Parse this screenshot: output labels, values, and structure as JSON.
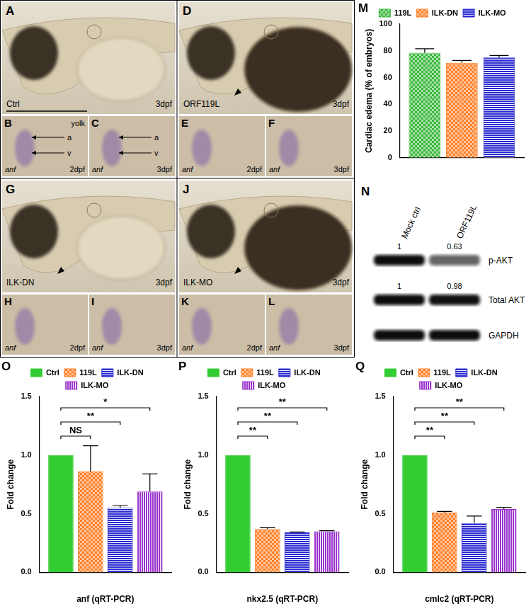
{
  "image_panels": [
    {
      "panel": "A",
      "label": "Ctrl",
      "stage": "3dpf"
    },
    {
      "panel": "B",
      "texts": [
        "yolk",
        "a",
        "v"
      ],
      "gene": "anf",
      "stage": "2dpf"
    },
    {
      "panel": "C",
      "texts": [
        "a",
        "v"
      ],
      "gene": "anf",
      "stage": "3dpf"
    },
    {
      "panel": "D",
      "label": "ORF119L",
      "stage": "3dpf"
    },
    {
      "panel": "E",
      "texts": [],
      "gene": "anf",
      "stage": "2dpf"
    },
    {
      "panel": "F",
      "texts": [],
      "gene": "anf",
      "stage": "3dpf"
    },
    {
      "panel": "G",
      "label": "ILK-DN",
      "stage": "3dpf"
    },
    {
      "panel": "H",
      "texts": [],
      "gene": "anf",
      "stage": "2dpf"
    },
    {
      "panel": "I",
      "texts": [],
      "gene": "anf",
      "stage": "3dpf"
    },
    {
      "panel": "J",
      "label": "ILK-MO",
      "stage": "3dpf"
    },
    {
      "panel": "K",
      "texts": [],
      "gene": "anf",
      "stage": "2dpf"
    },
    {
      "panel": "L",
      "texts": [],
      "gene": "anf",
      "stage": "3dpf"
    }
  ],
  "blot": {
    "panel": "N",
    "columns": [
      "Mock ctrl",
      "ORF119L"
    ],
    "rows": [
      {
        "name": "p-AKT",
        "values": [
          1,
          0.63
        ]
      },
      {
        "name": "Total AKT",
        "values": [
          1,
          0.98
        ]
      },
      {
        "name": "GAPDH"
      }
    ]
  },
  "chart_data": [
    {
      "panel": "M",
      "type": "bar",
      "y_label": "Cardiac edema (% of embryos)",
      "categories": [
        null
      ],
      "series": [
        {
          "name": "119L",
          "color": "#3cb83c",
          "values": [
            78.5
          ],
          "errors": [
            3
          ]
        },
        {
          "name": "ILK-DN",
          "color": "#ff7f27",
          "values": [
            71
          ],
          "errors": [
            1.8
          ]
        },
        {
          "name": "ILK-MO",
          "color": "#2a2ad0",
          "values": [
            75
          ],
          "errors": [
            1.5
          ]
        }
      ],
      "ylim": [
        0,
        100
      ],
      "yticks": [
        0,
        20,
        40,
        60,
        80,
        100
      ],
      "grid": false,
      "legend": "top"
    },
    {
      "panel": "O",
      "type": "bar",
      "x_label": "anf (qRT-PCR)",
      "y_label": "Fold change",
      "categories": [
        null
      ],
      "series": [
        {
          "name": "Ctrl",
          "color": "#33cc33",
          "values": [
            1.0
          ],
          "errors": [
            0
          ]
        },
        {
          "name": "119L",
          "color": "#ff7f27",
          "values": [
            0.86
          ],
          "errors": [
            0.22
          ]
        },
        {
          "name": "ILK-DN",
          "color": "#2a2ad0",
          "values": [
            0.55
          ],
          "errors": [
            0.02
          ]
        },
        {
          "name": "ILK-MO",
          "color": "#9933cc",
          "values": [
            0.69
          ],
          "errors": [
            0.15
          ]
        }
      ],
      "significance": [
        {
          "from": "Ctrl",
          "to": "119L",
          "label": "NS"
        },
        {
          "from": "Ctrl",
          "to": "ILK-DN",
          "label": "**"
        },
        {
          "from": "Ctrl",
          "to": "ILK-MO",
          "label": "*"
        }
      ],
      "ylim": [
        0,
        1.5
      ],
      "yticks": [
        {
          "value": 0,
          "label": "0.0"
        },
        0.5,
        {
          "value": 1,
          "label": "1.0"
        },
        1.5
      ],
      "grid": false,
      "legend": "top"
    },
    {
      "panel": "P",
      "type": "bar",
      "x_label": "nkx2.5 (qRT-PCR)",
      "y_label": "Fold change",
      "categories": [
        null
      ],
      "series": [
        {
          "name": "Ctrl",
          "color": "#33cc33",
          "values": [
            1.0
          ],
          "errors": [
            0
          ]
        },
        {
          "name": "119L",
          "color": "#ff7f27",
          "values": [
            0.37
          ],
          "errors": [
            0.01
          ]
        },
        {
          "name": "ILK-DN",
          "color": "#2a2ad0",
          "values": [
            0.34
          ],
          "errors": [
            0.005
          ]
        },
        {
          "name": "ILK-MO",
          "color": "#9933cc",
          "values": [
            0.35
          ],
          "errors": [
            0.005
          ]
        }
      ],
      "significance": [
        {
          "from": "Ctrl",
          "to": "119L",
          "label": "**"
        },
        {
          "from": "Ctrl",
          "to": "ILK-DN",
          "label": "**"
        },
        {
          "from": "Ctrl",
          "to": "ILK-MO",
          "label": "**"
        }
      ],
      "ylim": [
        0,
        1.5
      ],
      "yticks": [
        {
          "value": 0,
          "label": "0.0"
        },
        0.5,
        {
          "value": 1,
          "label": "1.0"
        },
        1.5
      ],
      "grid": false,
      "legend": "top"
    },
    {
      "panel": "Q",
      "type": "bar",
      "x_label": "cmlc2 (qRT-PCR)",
      "y_label": "Fold change",
      "categories": [
        null
      ],
      "series": [
        {
          "name": "Ctrl",
          "color": "#33cc33",
          "values": [
            1.0
          ],
          "errors": [
            0
          ]
        },
        {
          "name": "119L",
          "color": "#ff7f27",
          "values": [
            0.51
          ],
          "errors": [
            0.01
          ]
        },
        {
          "name": "ILK-DN",
          "color": "#2a2ad0",
          "values": [
            0.42
          ],
          "errors": [
            0.06
          ]
        },
        {
          "name": "ILK-MO",
          "color": "#9933cc",
          "values": [
            0.54
          ],
          "errors": [
            0.015
          ]
        }
      ],
      "significance": [
        {
          "from": "Ctrl",
          "to": "119L",
          "label": "**"
        },
        {
          "from": "Ctrl",
          "to": "ILK-DN",
          "label": "**"
        },
        {
          "from": "Ctrl",
          "to": "ILK-MO",
          "label": "**"
        }
      ],
      "ylim": [
        0,
        1.5
      ],
      "yticks": [
        {
          "value": 0,
          "label": "0.0"
        },
        0.5,
        {
          "value": 1,
          "label": "1.0"
        },
        1.5
      ],
      "grid": false,
      "legend": "top"
    }
  ]
}
